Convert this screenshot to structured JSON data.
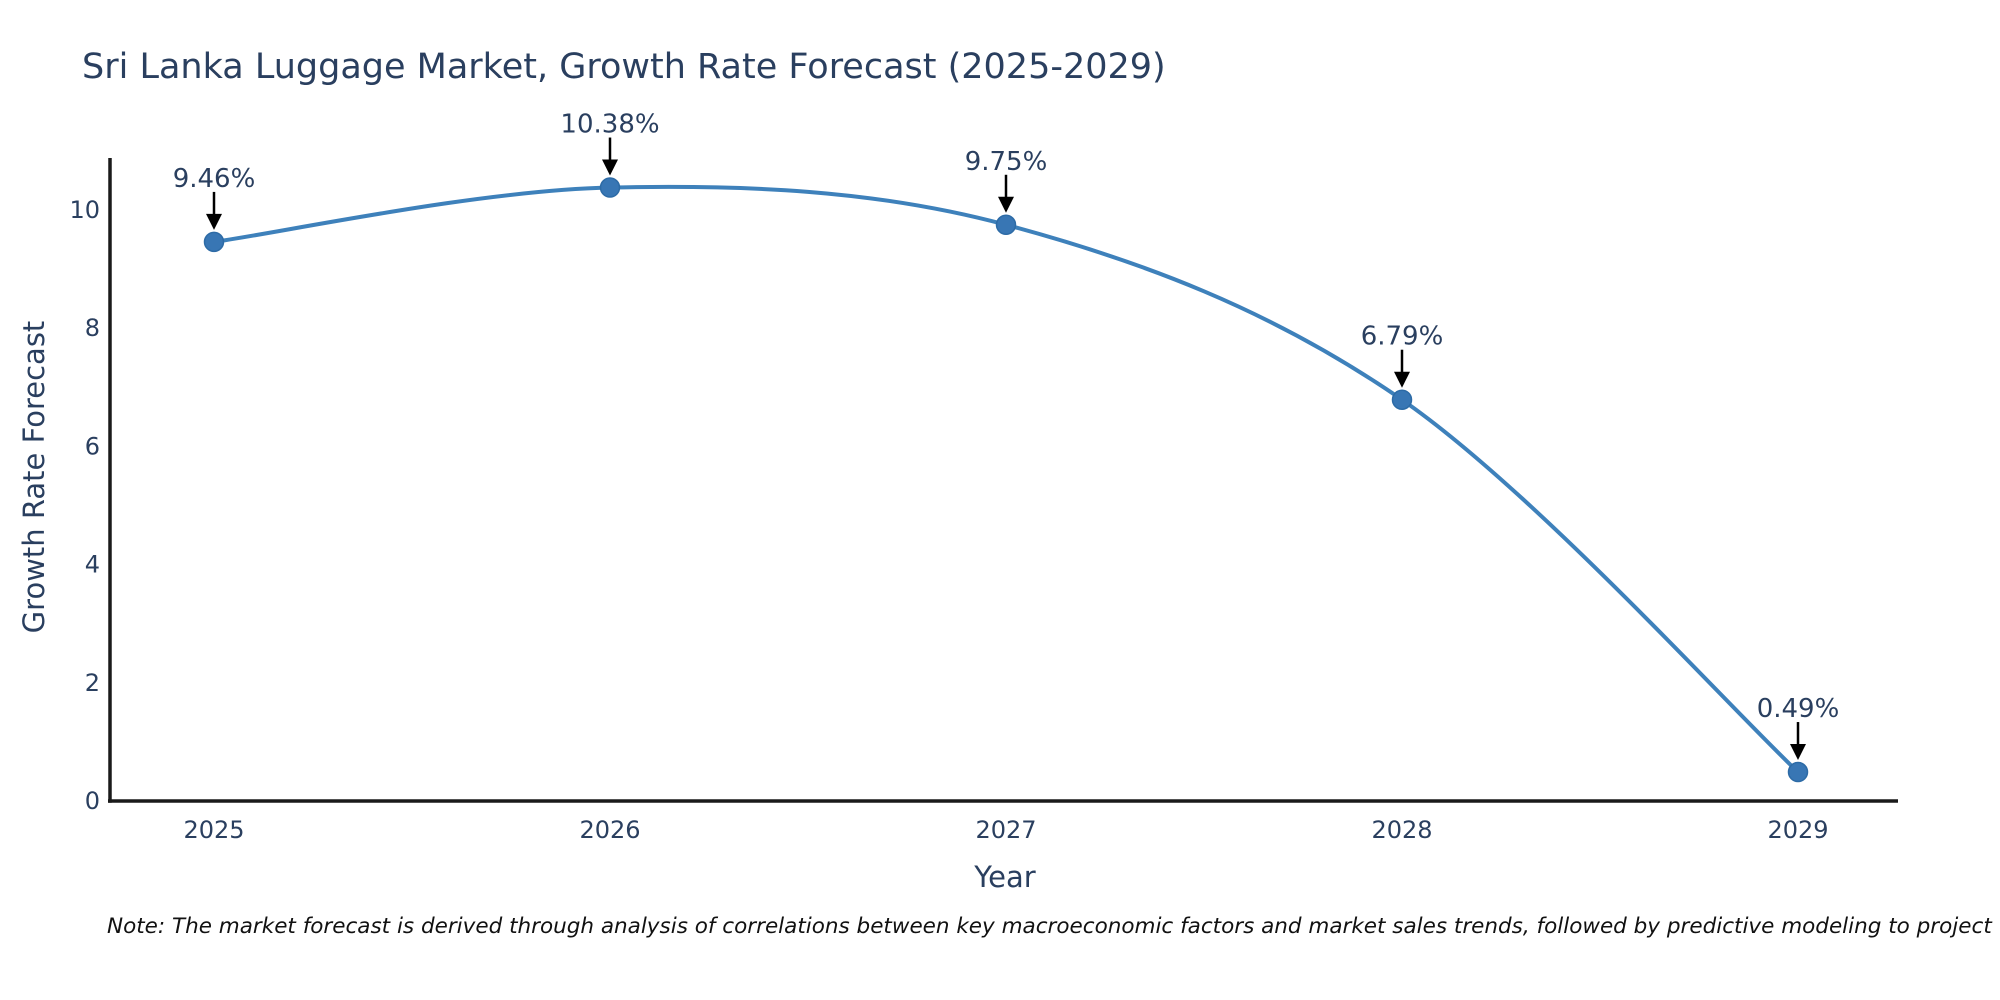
{
  "chart_data": {
    "type": "line",
    "line_shape": "spline",
    "title": "Sri Lanka Luggage Market, Growth Rate Forecast (2025-2029)",
    "xlabel": "Year",
    "ylabel": "Growth Rate Forecast",
    "x": [
      2025,
      2026,
      2027,
      2028,
      2029
    ],
    "series": [
      {
        "name": "Growth Rate Forecast",
        "values": [
          9.46,
          10.38,
          9.75,
          6.79,
          0.49
        ]
      }
    ],
    "point_labels": [
      "9.46%",
      "10.38%",
      "9.75%",
      "6.79%",
      "0.49%"
    ],
    "xticks": [
      "2025",
      "2026",
      "2027",
      "2028",
      "2029"
    ],
    "yticks": [
      0,
      2,
      4,
      6,
      8,
      10
    ],
    "ylim": [
      0,
      10.88
    ],
    "grid": false,
    "legend": "none",
    "colors": {
      "line": "#3e81bb",
      "marker_fill": "#3876b4",
      "marker_edge": "#2d6ba6",
      "arrow": "#000000",
      "text": "#2a3f5f",
      "axis_line": "#1a1a1a"
    }
  },
  "note": {
    "text": "Note: The market forecast is derived through analysis of correlations between key macroeconomic factors and market sales trends, followed by predictive modeling to project future sales"
  }
}
